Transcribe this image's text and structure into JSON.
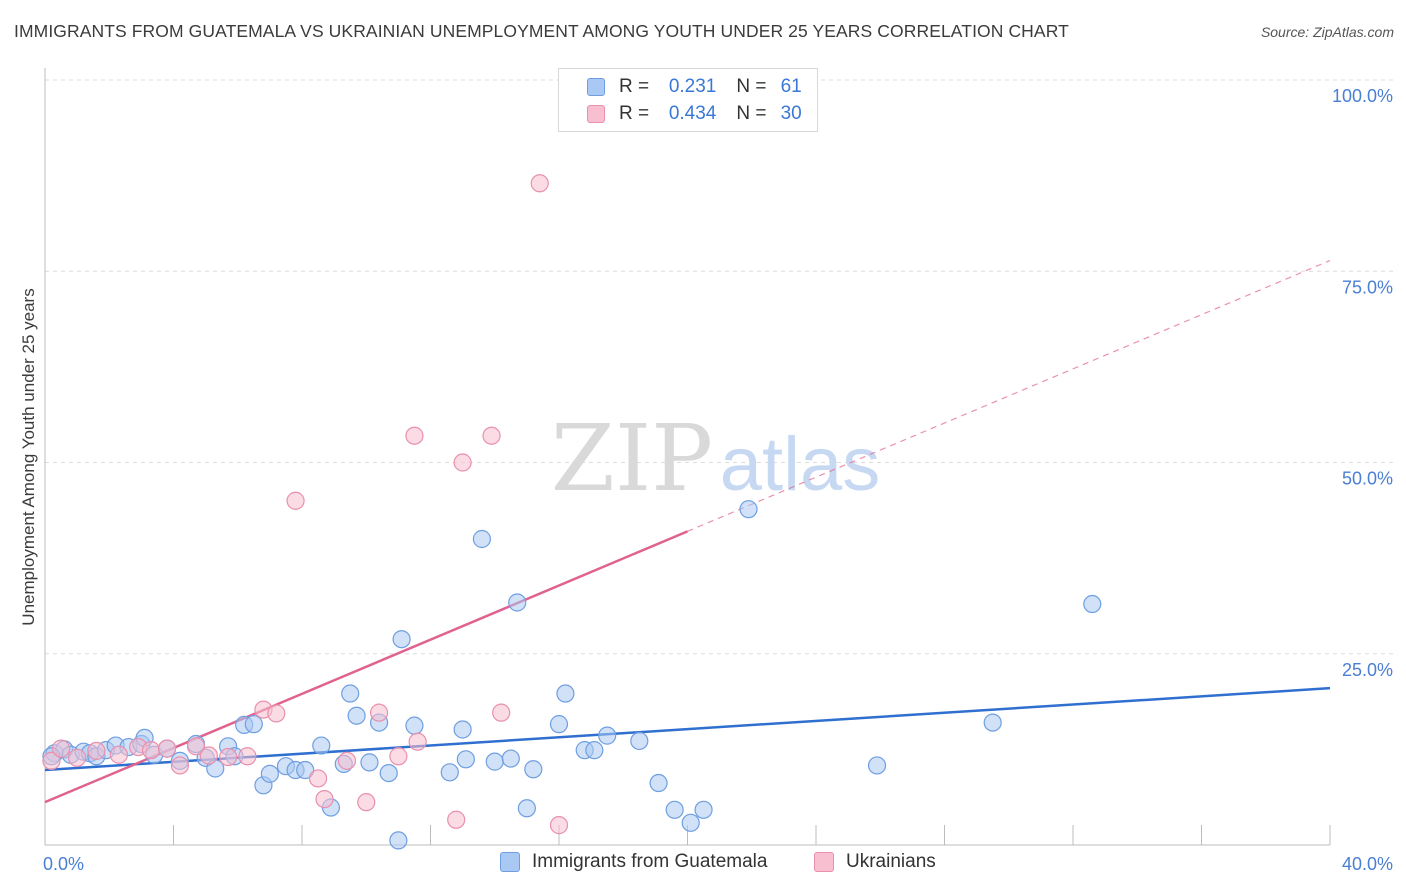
{
  "title": "IMMIGRANTS FROM GUATEMALA VS UKRAINIAN UNEMPLOYMENT AMONG YOUTH UNDER 25 YEARS CORRELATION CHART",
  "source": "Source: ZipAtlas.com",
  "watermark": {
    "zip": "ZIP",
    "atlas": "atlas"
  },
  "legend_top": {
    "rows": [
      {
        "r_label": "R = ",
        "r_value": "0.231",
        "n_label": "N = ",
        "n_value": "61",
        "color": "#a9c8f3",
        "border": "#6f9fe0"
      },
      {
        "r_label": "R = ",
        "r_value": "0.434",
        "n_label": "N = ",
        "n_value": "30",
        "color": "#f7bfd0",
        "border": "#e890ad"
      }
    ]
  },
  "legend_bottom": {
    "items": [
      {
        "label": "Immigrants from Guatemala",
        "color": "#a9c8f3",
        "border": "#6f9fe0"
      },
      {
        "label": "Ukrainians",
        "color": "#f7bfd0",
        "border": "#e890ad"
      }
    ]
  },
  "chart_data": {
    "type": "scatter",
    "title": "IMMIGRANTS FROM GUATEMALA VS UKRAINIAN UNEMPLOYMENT AMONG YOUTH UNDER 25 YEARS CORRELATION CHART",
    "xlabel": "",
    "ylabel": "Unemployment Among Youth under 25 years",
    "xlim": [
      0,
      40
    ],
    "ylim": [
      0,
      100
    ],
    "x_tick_labels": [
      "0.0%",
      "40.0%"
    ],
    "y_ticks": [
      25,
      50,
      75,
      100
    ],
    "y_tick_labels": [
      "25.0%",
      "50.0%",
      "75.0%",
      "100.0%"
    ],
    "grid": true,
    "series": [
      {
        "name": "Immigrants from Guatemala",
        "color": "#a9c8f3",
        "stroke": "#6f9fe0",
        "trend_color": "#2f6fcf",
        "trend": {
          "x": [
            0,
            40
          ],
          "y": [
            9.8,
            20.5
          ]
        },
        "points": [
          [
            0.3,
            12.0
          ],
          [
            0.6,
            12.5
          ],
          [
            0.8,
            11.8
          ],
          [
            1.2,
            12.2
          ],
          [
            1.4,
            12.0
          ],
          [
            1.6,
            11.6
          ],
          [
            1.9,
            12.4
          ],
          [
            2.2,
            13.0
          ],
          [
            2.6,
            12.8
          ],
          [
            3.0,
            13.2
          ],
          [
            3.1,
            14.0
          ],
          [
            3.4,
            11.8
          ],
          [
            3.8,
            12.6
          ],
          [
            4.2,
            11.0
          ],
          [
            4.7,
            13.2
          ],
          [
            5.0,
            11.4
          ],
          [
            5.3,
            10.0
          ],
          [
            5.7,
            12.9
          ],
          [
            5.9,
            11.6
          ],
          [
            6.2,
            15.7
          ],
          [
            6.5,
            15.8
          ],
          [
            6.8,
            7.8
          ],
          [
            7.0,
            9.3
          ],
          [
            7.5,
            10.3
          ],
          [
            7.8,
            9.8
          ],
          [
            8.1,
            9.8
          ],
          [
            8.6,
            13.0
          ],
          [
            8.9,
            4.9
          ],
          [
            9.3,
            10.6
          ],
          [
            9.5,
            19.8
          ],
          [
            9.7,
            16.9
          ],
          [
            10.1,
            10.8
          ],
          [
            10.4,
            16.0
          ],
          [
            10.7,
            9.4
          ],
          [
            11.0,
            0.6
          ],
          [
            11.1,
            26.9
          ],
          [
            11.5,
            15.6
          ],
          [
            12.6,
            9.5
          ],
          [
            13.0,
            15.1
          ],
          [
            13.1,
            11.2
          ],
          [
            13.6,
            40.0
          ],
          [
            14.0,
            10.9
          ],
          [
            14.5,
            11.3
          ],
          [
            14.7,
            31.7
          ],
          [
            15.0,
            4.8
          ],
          [
            15.2,
            9.9
          ],
          [
            16.0,
            15.8
          ],
          [
            16.2,
            19.8
          ],
          [
            16.8,
            12.4
          ],
          [
            17.1,
            12.4
          ],
          [
            17.5,
            14.3
          ],
          [
            18.5,
            13.6
          ],
          [
            19.1,
            8.1
          ],
          [
            19.6,
            4.6
          ],
          [
            20.1,
            2.9
          ],
          [
            20.5,
            4.6
          ],
          [
            21.9,
            43.9
          ],
          [
            25.9,
            10.4
          ],
          [
            29.5,
            16.0
          ],
          [
            32.6,
            31.5
          ],
          [
            0.2,
            11.6
          ]
        ]
      },
      {
        "name": "Ukrainians",
        "color": "#f7bfd0",
        "stroke": "#e890ad",
        "trend_color": "#e0628e",
        "trend": {
          "x": [
            0,
            20
          ],
          "y": [
            5.6,
            41.0
          ]
        },
        "trend_extension": {
          "x": [
            20,
            40
          ],
          "y": [
            41.0,
            76.4
          ]
        },
        "points": [
          [
            0.2,
            11.0
          ],
          [
            0.5,
            12.6
          ],
          [
            1.0,
            11.4
          ],
          [
            1.6,
            12.3
          ],
          [
            2.3,
            11.8
          ],
          [
            2.9,
            12.8
          ],
          [
            3.3,
            12.4
          ],
          [
            3.8,
            12.6
          ],
          [
            4.2,
            10.4
          ],
          [
            4.7,
            12.9
          ],
          [
            5.1,
            11.7
          ],
          [
            5.7,
            11.5
          ],
          [
            6.3,
            11.6
          ],
          [
            6.8,
            17.7
          ],
          [
            7.2,
            17.2
          ],
          [
            7.8,
            45.0
          ],
          [
            8.5,
            8.7
          ],
          [
            8.7,
            6.0
          ],
          [
            9.4,
            11.0
          ],
          [
            10.0,
            5.6
          ],
          [
            10.4,
            17.3
          ],
          [
            11.0,
            11.6
          ],
          [
            11.5,
            53.5
          ],
          [
            11.6,
            13.5
          ],
          [
            12.8,
            3.3
          ],
          [
            13.0,
            50.0
          ],
          [
            13.9,
            53.5
          ],
          [
            14.2,
            17.3
          ],
          [
            15.4,
            86.5
          ],
          [
            16.0,
            2.6
          ]
        ]
      }
    ]
  }
}
